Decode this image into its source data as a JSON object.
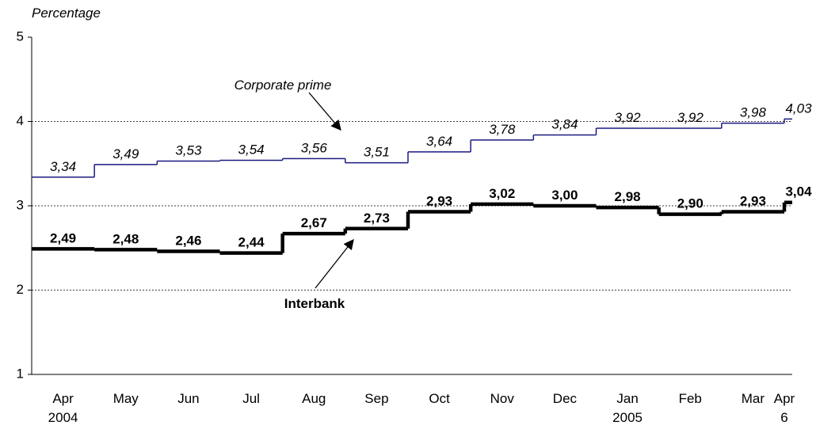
{
  "chart_data": {
    "type": "step-line",
    "y_axis_label": "Percentage",
    "categories": [
      "Apr 2004",
      "May",
      "Jun",
      "Jul",
      "Aug",
      "Sep",
      "Oct",
      "Nov",
      "Dec",
      "Jan 2005",
      "Feb",
      "Mar",
      "Apr 6"
    ],
    "series": [
      {
        "name": "Corporate prime",
        "color": "#1a1a80",
        "values": [
          3.34,
          3.49,
          3.53,
          3.54,
          3.56,
          3.51,
          3.64,
          3.78,
          3.84,
          3.92,
          3.92,
          3.98,
          4.03
        ],
        "value_labels": [
          "3,34",
          "3,49",
          "3,53",
          "3,54",
          "3,56",
          "3,51",
          "3,64",
          "3,78",
          "3,84",
          "3,92",
          "3,92",
          "3,98",
          "4,03"
        ]
      },
      {
        "name": "Interbank",
        "color": "#000000",
        "values": [
          2.49,
          2.48,
          2.46,
          2.44,
          2.67,
          2.73,
          2.93,
          3.02,
          3.0,
          2.98,
          2.9,
          2.93,
          3.04
        ],
        "value_labels": [
          "2,49",
          "2,48",
          "2,46",
          "2,44",
          "2,67",
          "2,73",
          "2,93",
          "3,02",
          "3,00",
          "2,98",
          "2,90",
          "2,93",
          "3,04"
        ]
      }
    ],
    "ylim": [
      1,
      5
    ],
    "yticks": [
      1,
      2,
      3,
      4,
      5
    ],
    "grid": true
  }
}
